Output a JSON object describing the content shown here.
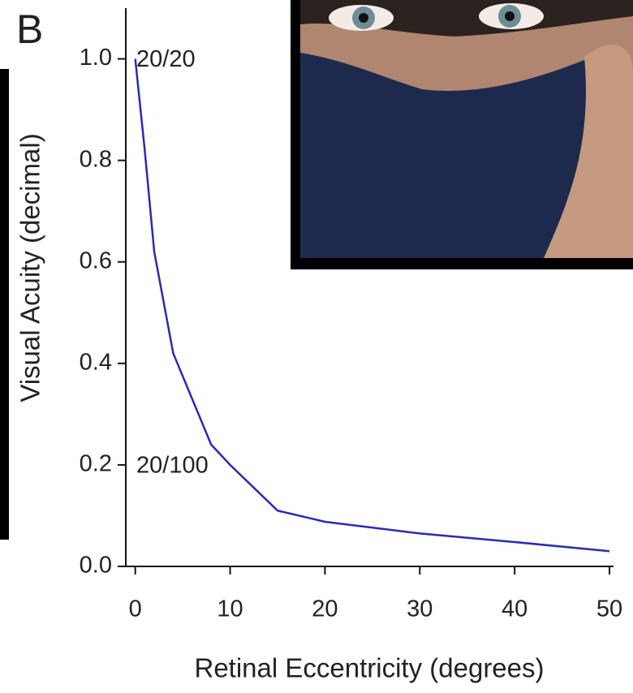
{
  "chart_data": {
    "type": "line",
    "panel_label": "B",
    "x_label": "Retinal Eccentricity (degrees)",
    "y_label": "Visual Acuity (decimal)",
    "x": [
      0,
      1,
      2,
      4,
      6,
      8,
      10,
      15,
      20,
      30,
      40,
      50
    ],
    "series": [
      {
        "name": "Visual acuity",
        "color": "#2a2ab8",
        "values": [
          1.0,
          0.82,
          0.62,
          0.42,
          0.33,
          0.24,
          0.2,
          0.11,
          0.088,
          0.065,
          0.048,
          0.03
        ]
      }
    ],
    "xlim": [
      -1,
      50
    ],
    "xticks": [
      0,
      10,
      20,
      30,
      40,
      50
    ],
    "ylim": [
      0,
      1.1
    ],
    "yticks": [
      {
        "value": 1,
        "label": "1.0"
      },
      0.8,
      0.6,
      0.4,
      0.2,
      {
        "value": 0,
        "label": "0.0"
      }
    ],
    "annotations": [
      "20/20",
      "20/100"
    ]
  }
}
